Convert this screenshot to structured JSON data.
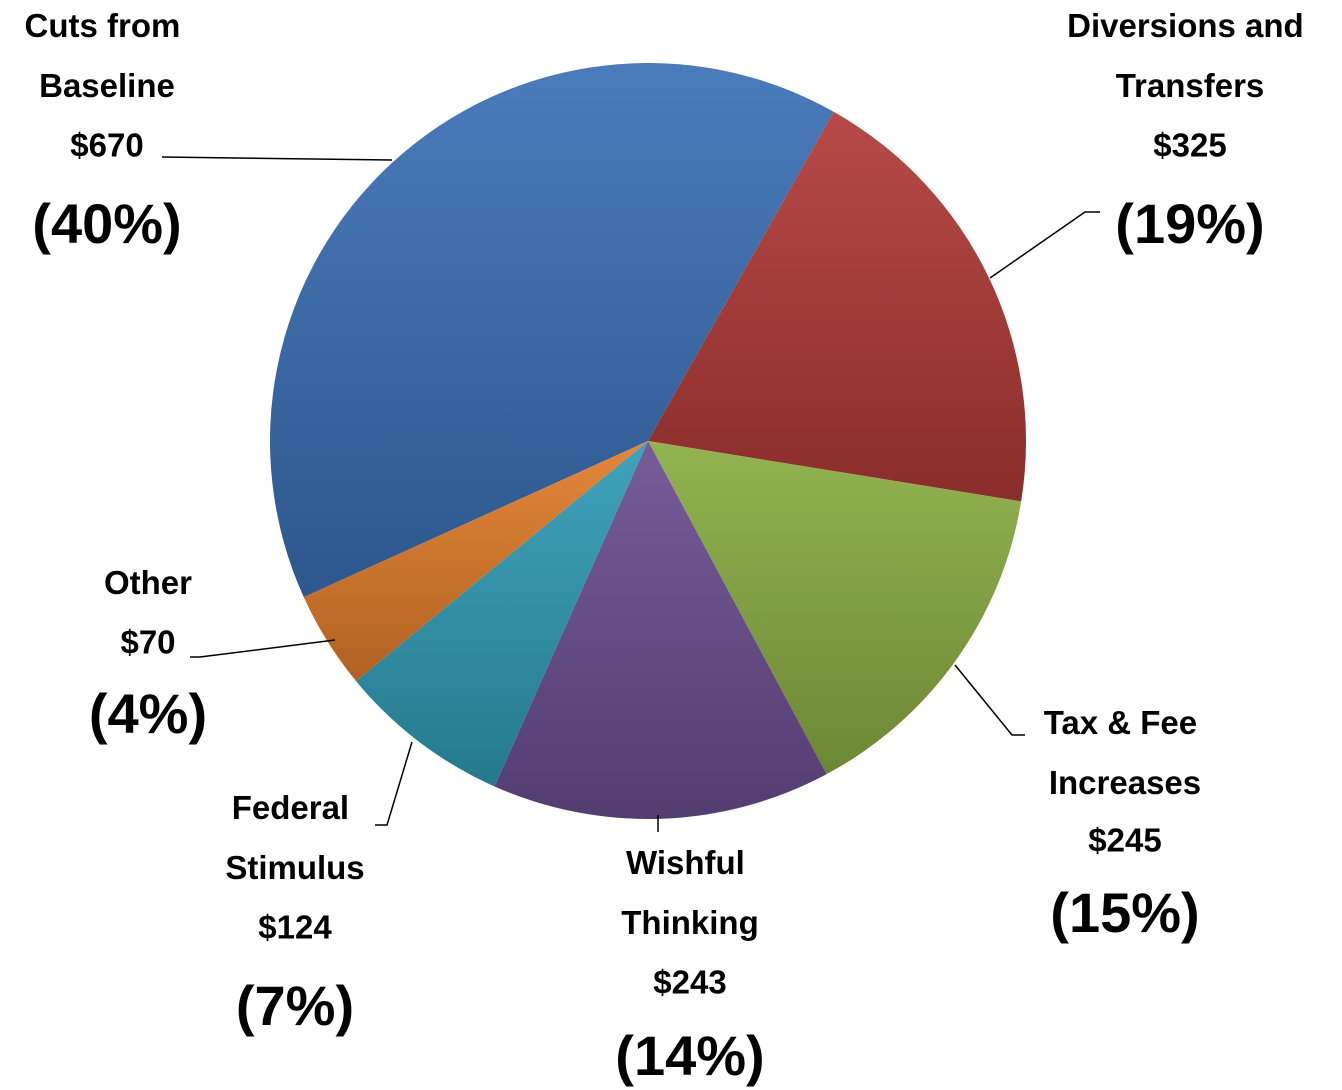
{
  "chart_data": {
    "type": "pie",
    "categories": [
      "Cuts from Baseline",
      "Diversions and Transfers",
      "Tax & Fee Increases",
      "Wishful Thinking",
      "Federal Stimulus",
      "Other"
    ],
    "values": [
      670,
      325,
      245,
      243,
      124,
      70
    ],
    "value_labels": [
      "$670",
      "$325",
      "$245",
      "$243",
      "$124",
      "$70"
    ],
    "percent_labels": [
      "(40%)",
      "(19%)",
      "(15%)",
      "(14%)",
      "(7%)",
      "(4%)"
    ],
    "colors": [
      "#3a6fb5",
      "#b13a37",
      "#8aad42",
      "#6b4e90",
      "#2f9bb5",
      "#e27d2a"
    ]
  }
}
